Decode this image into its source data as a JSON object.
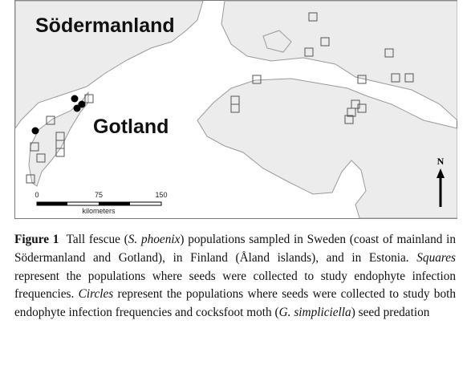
{
  "map": {
    "labels": [
      "Södermanland",
      "Gotland"
    ],
    "scale": {
      "ticks": [
        "0",
        "75",
        "150"
      ],
      "unit": "kilometers"
    },
    "north": "N"
  },
  "caption": {
    "label": "Figure 1",
    "segments": [
      {
        "text": "Tall fescue (",
        "italic": false
      },
      {
        "text": "S. phoenix",
        "italic": true
      },
      {
        "text": ") populations sampled in Sweden (coast of mainland in Södermanland and Gotland), in Finland (Åland islands), and in Estonia. ",
        "italic": false
      },
      {
        "text": "Squares",
        "italic": true
      },
      {
        "text": " represent the populations where seeds were collected to study endophyte infection frequencies. ",
        "italic": false
      },
      {
        "text": "Circles",
        "italic": true
      },
      {
        "text": " represent the populations where seeds were collected to study both endophyte infection frequencies and cocksfoot moth (",
        "italic": false
      },
      {
        "text": "G. simpliciella",
        "italic": true
      },
      {
        "text": ") seed predation",
        "italic": false
      }
    ]
  }
}
